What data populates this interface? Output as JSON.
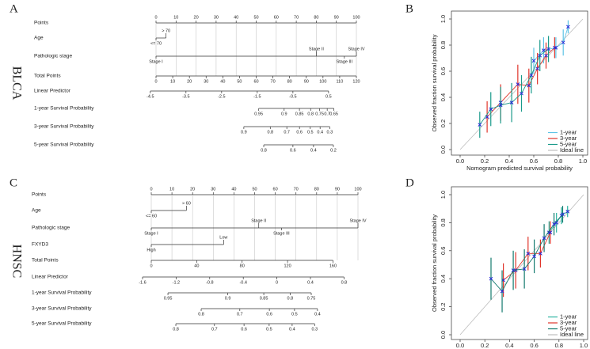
{
  "chart_data": [
    {
      "type": "nomogram",
      "panel": "A",
      "cohort": "BLCA",
      "rows": [
        {
          "label": "Points",
          "scale": "linear",
          "xlim": [
            0,
            100
          ],
          "ticks": [
            0,
            10,
            20,
            30,
            40,
            50,
            60,
            70,
            80,
            90,
            100
          ]
        },
        {
          "label": "Age",
          "categories": [
            "<= 70",
            "> 70"
          ],
          "values": [
            0,
            5
          ]
        },
        {
          "label": "Pathologic stage",
          "categories": [
            "Stage I",
            "Stage II",
            "Stage III",
            "Stage IV"
          ],
          "values": [
            0,
            80,
            94,
            100
          ]
        },
        {
          "label": "Total Points",
          "scale": "linear",
          "xlim": [
            0,
            120
          ],
          "ticks": [
            0,
            10,
            20,
            30,
            40,
            50,
            60,
            70,
            80,
            90,
            100,
            110,
            120
          ]
        },
        {
          "label": "Linear Predictor",
          "scale": "linear",
          "xlim": [
            -4.34,
            1.28
          ],
          "ticks": [
            -4.5,
            -3.5,
            -2.5,
            -1.5,
            -0.5,
            0.5
          ]
        },
        {
          "label": "1-year Survival Probability",
          "scale": "cloglog",
          "xlim": [
            0.9972,
            0.443
          ],
          "ticks": [
            0.95,
            0.9,
            0.85,
            0.8,
            0.75,
            0.7,
            0.65
          ]
        },
        {
          "label": "3-year Survival Probability",
          "scale": "cloglog",
          "xlim": [
            0.9913,
            0.0771
          ],
          "ticks": [
            0.9,
            0.8,
            0.7,
            0.6,
            0.5,
            0.4,
            0.3
          ]
        },
        {
          "label": "5-year Survival Probability",
          "scale": "cloglog",
          "xlim": [
            0.98956,
            0.0454
          ],
          "ticks": [
            0.8,
            0.6,
            0.4,
            0.2
          ]
        }
      ]
    },
    {
      "type": "calibration",
      "panel": "B",
      "xlabel": "Nomogram predicted survival probability",
      "ylabel": "Observed fraction survival probability",
      "xlim": [
        0,
        1
      ],
      "ylim": [
        0,
        1
      ],
      "xticks": [
        {
          "value": 0,
          "label": "0.0"
        },
        0.2,
        0.4,
        0.6,
        0.8,
        {
          "value": 1,
          "label": "1.0"
        }
      ],
      "yticks": [
        {
          "value": 0,
          "label": "0.0"
        },
        0.2,
        0.4,
        0.6,
        0.8,
        {
          "value": 1,
          "label": "1.0"
        }
      ],
      "marker_color": "#2a2ad8",
      "legend": "lower right",
      "series": [
        {
          "name": "1-year",
          "color": "#5ec3e6",
          "x": [
            0.6,
            0.68,
            0.78,
            0.84,
            0.88
          ],
          "values": [
            0.68,
            0.76,
            0.78,
            0.82,
            0.94
          ],
          "errors": [
            0.1,
            0.1,
            0.08,
            0.1,
            0.05
          ]
        },
        {
          "name": "3-year",
          "color": "#e0352b",
          "x": [
            0.22,
            0.33,
            0.47,
            0.56,
            0.63,
            0.7,
            0.77
          ],
          "values": [
            0.25,
            0.36,
            0.5,
            0.49,
            0.62,
            0.72,
            0.78
          ],
          "errors": [
            0.12,
            0.14,
            0.15,
            0.13,
            0.12,
            0.1,
            0.08
          ]
        },
        {
          "name": "5-year",
          "color": "#1a9a8a",
          "x": [
            0.16,
            0.25,
            0.33,
            0.42,
            0.5,
            0.58,
            0.65,
            0.72
          ],
          "values": [
            0.19,
            0.31,
            0.34,
            0.36,
            0.43,
            0.57,
            0.72,
            0.77
          ],
          "errors": [
            0.1,
            0.13,
            0.14,
            0.15,
            0.14,
            0.14,
            0.12,
            0.1
          ]
        }
      ],
      "ideal": {
        "name": "Ideal line",
        "color": "#bdbdbd"
      }
    },
    {
      "type": "nomogram",
      "panel": "C",
      "cohort": "HNSC",
      "rows": [
        {
          "label": "Points",
          "scale": "linear",
          "xlim": [
            0,
            100
          ],
          "ticks": [
            0,
            10,
            20,
            30,
            40,
            50,
            60,
            70,
            80,
            90,
            100
          ]
        },
        {
          "label": "Age",
          "categories": [
            "<= 60",
            "> 60"
          ],
          "values": [
            0,
            17
          ]
        },
        {
          "label": "Pathologic stage",
          "categories": [
            "Stage I",
            "Stage II",
            "Stage III",
            "Stage IV"
          ],
          "values": [
            0,
            52,
            63,
            100
          ]
        },
        {
          "label": "FXYD3",
          "categories": [
            "High",
            "Low"
          ],
          "values": [
            0,
            35
          ]
        },
        {
          "label": "Total Points",
          "scale": "linear",
          "xlim": [
            0,
            182
          ],
          "ticks": [
            0,
            40,
            80,
            120,
            160
          ]
        },
        {
          "label": "Linear Predictor",
          "scale": "linear",
          "xlim": [
            -1.496,
            0.966
          ],
          "ticks": [
            -1.6,
            -1.2,
            -0.8,
            -0.4,
            0,
            0.4,
            0.8
          ]
        },
        {
          "label": "1-year Survival Probability",
          "scale": "cloglog",
          "xlim": [
            0.9589,
            0.6037
          ],
          "ticks": [
            0.95,
            0.9,
            0.85,
            0.8,
            0.75
          ]
        },
        {
          "label": "3-year Survival Probability",
          "scale": "cloglog",
          "xlim": [
            0.8854,
            0.2236
          ],
          "ticks": [
            0.8,
            0.7,
            0.6,
            0.5,
            0.4
          ]
        },
        {
          "label": "5-year Survival Probability",
          "scale": "cloglog",
          "xlim": [
            0.8474,
            0.1303
          ],
          "ticks": [
            0.8,
            0.7,
            0.6,
            0.5,
            0.4,
            0.3
          ]
        }
      ]
    },
    {
      "type": "calibration",
      "panel": "D",
      "xlabel": "Nomogram predicted survival probability",
      "ylabel": "Observed fraction survival probability",
      "xlim": [
        0,
        1
      ],
      "ylim": [
        0,
        1
      ],
      "xticks": [
        {
          "value": 0,
          "label": "0.0"
        },
        0.2,
        0.4,
        0.6,
        0.8,
        {
          "value": 1,
          "label": "1.0"
        }
      ],
      "yticks": [
        {
          "value": 0,
          "label": "0.0"
        },
        0.2,
        0.4,
        0.6,
        0.8,
        {
          "value": 1,
          "label": "1.0"
        }
      ],
      "marker_color": "#2a2ad8",
      "legend": "lower right",
      "series": [
        {
          "name": "1-year",
          "color": "#2bb3a0",
          "x": [
            0.72,
            0.78,
            0.82,
            0.87
          ],
          "values": [
            0.73,
            0.8,
            0.85,
            0.88
          ],
          "errors": [
            0.08,
            0.07,
            0.06,
            0.04
          ]
        },
        {
          "name": "3-year",
          "color": "#e0352b",
          "x": [
            0.35,
            0.45,
            0.55,
            0.65,
            0.73
          ],
          "values": [
            0.39,
            0.46,
            0.58,
            0.58,
            0.73
          ],
          "errors": [
            0.12,
            0.13,
            0.12,
            0.1,
            0.08
          ]
        },
        {
          "name": "5-year",
          "color": "#137a6e",
          "x": [
            0.25,
            0.34,
            0.43,
            0.52,
            0.6,
            0.68,
            0.76,
            0.83
          ],
          "values": [
            0.4,
            0.31,
            0.46,
            0.47,
            0.56,
            0.69,
            0.79,
            0.86
          ],
          "errors": [
            0.15,
            0.15,
            0.14,
            0.14,
            0.12,
            0.1,
            0.08,
            0.06
          ]
        }
      ],
      "ideal": {
        "name": "Ideal line",
        "color": "#bdbdbd"
      }
    }
  ]
}
